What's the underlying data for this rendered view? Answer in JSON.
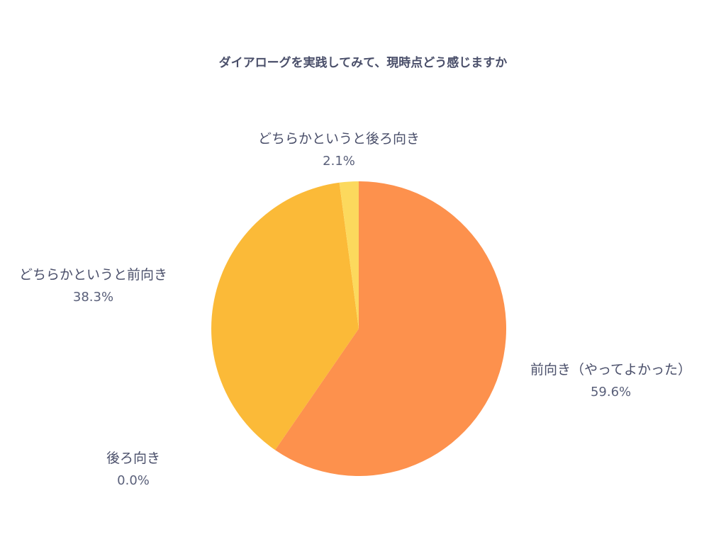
{
  "chart_data": {
    "type": "pie",
    "title": "ダイアローグを実践してみて、現時点どう感じますか",
    "slices": [
      {
        "label": "前向き（やってよかった）",
        "value": 59.6,
        "value_label": "59.6%",
        "color": "#fd914d"
      },
      {
        "label": "後ろ向き",
        "value": 0.0,
        "value_label": "0.0%",
        "color": "#f6a02f"
      },
      {
        "label": "どちらかというと前向き",
        "value": 38.3,
        "value_label": "38.3%",
        "color": "#fbba38"
      },
      {
        "label": "どちらかというと後ろ向き",
        "value": 2.1,
        "value_label": "2.1%",
        "color": "#fcd95d"
      }
    ],
    "direction": "clockwise",
    "start_angle": "12 o'clock"
  }
}
